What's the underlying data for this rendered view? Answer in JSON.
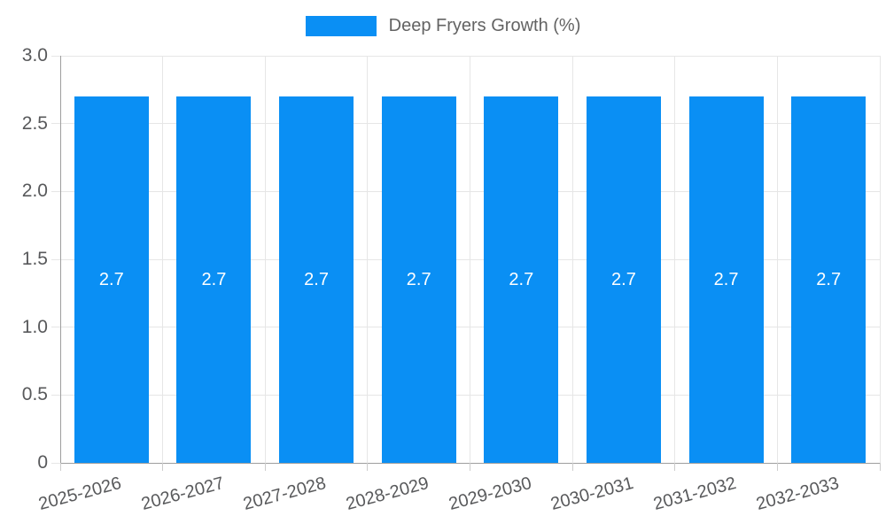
{
  "chart_data": {
    "type": "bar",
    "title": "",
    "legend": {
      "position": "top",
      "label": "Deep Fryers Growth (%)"
    },
    "categories": [
      "2025-2026",
      "2026-2027",
      "2027-2028",
      "2028-2029",
      "2029-2030",
      "2030-2031",
      "2031-2032",
      "2032-2033"
    ],
    "series": [
      {
        "name": "Deep Fryers Growth (%)",
        "values": [
          2.7,
          2.7,
          2.7,
          2.7,
          2.7,
          2.7,
          2.7,
          2.7
        ]
      }
    ],
    "data_labels": [
      "2.7",
      "2.7",
      "2.7",
      "2.7",
      "2.7",
      "2.7",
      "2.7",
      "2.7"
    ],
    "xlabel": "",
    "ylabel": "",
    "ylim": [
      0,
      3
    ],
    "ytick_labels": [
      "0",
      "0.5",
      "1.0",
      "1.5",
      "2.0",
      "2.5",
      "3.0"
    ],
    "grid": true,
    "colors": {
      "bar": "#0a8ff4",
      "data_label": "#ffffff",
      "axis_label": "#58595b",
      "legend_text": "#636363",
      "gridline": "#e6e6e6",
      "tick": "#cccccc",
      "axis_line": "#9e9e9e",
      "background": "#ffffff"
    }
  }
}
